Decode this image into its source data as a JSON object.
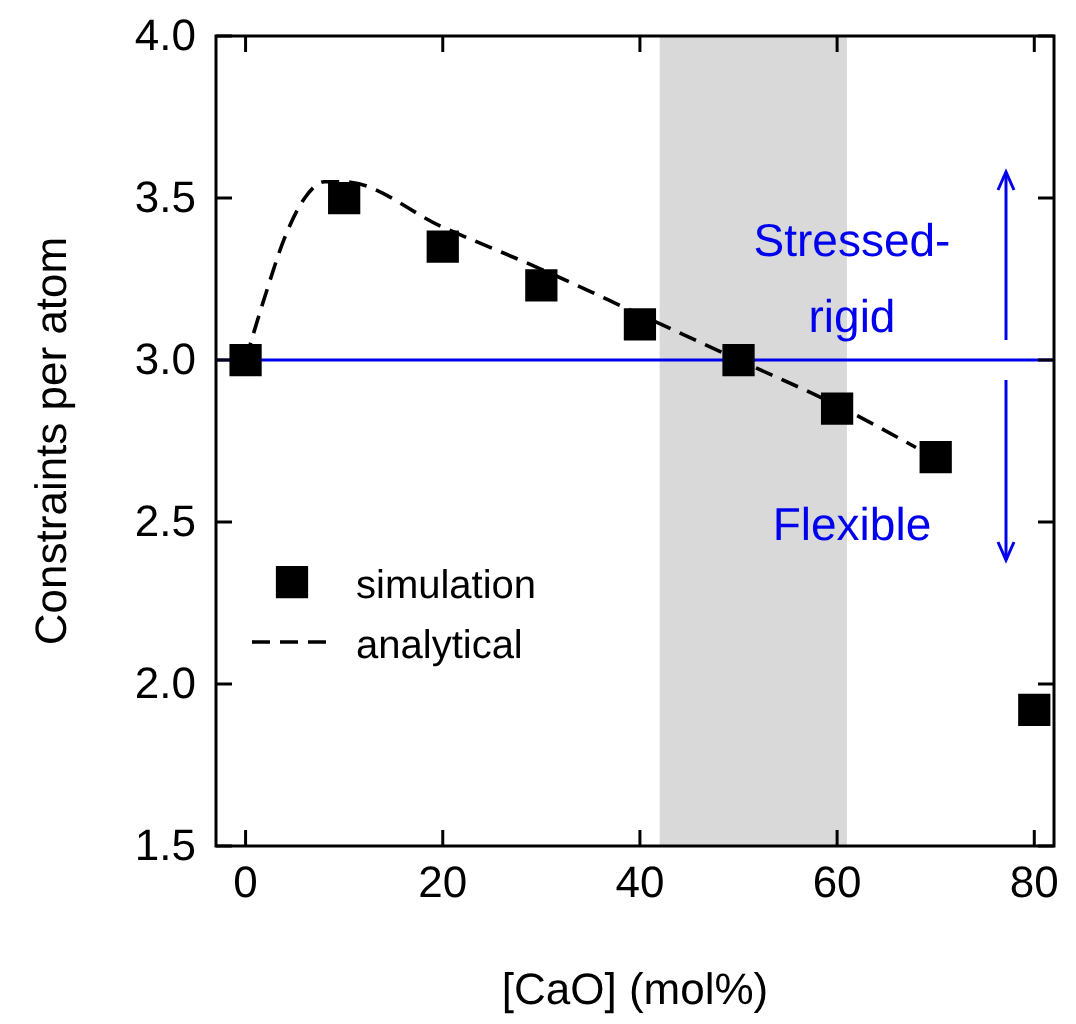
{
  "chart_data": {
    "type": "scatter",
    "xlabel": "[CaO] (mol%)",
    "ylabel": "Constraints per atom",
    "xlim": [
      -3,
      82
    ],
    "xticks": [
      0,
      20,
      40,
      60,
      80
    ],
    "ylim": [
      1.5,
      4.0
    ],
    "yticks": [
      1.5,
      {
        "value": 2,
        "label": "2.0"
      },
      2.5,
      {
        "value": 3,
        "label": "3.0"
      },
      3.5,
      {
        "value": 4,
        "label": "4.0"
      }
    ],
    "grid": false,
    "legend": "bottom left",
    "series": [
      {
        "name": "simulation",
        "marker": "square",
        "color": "#000000",
        "x": [
          0,
          10,
          20,
          30,
          40,
          50,
          60,
          70,
          80
        ],
        "values": [
          3.0,
          3.5,
          3.35,
          3.23,
          3.11,
          3.0,
          2.85,
          2.7,
          1.92
        ]
      },
      {
        "name": "analytical",
        "type": "line",
        "line_style": "dashed",
        "marker": "none",
        "color": "#000000",
        "x": [
          0,
          2,
          4,
          6,
          8,
          10,
          20,
          30,
          40,
          50,
          60,
          68
        ],
        "values": [
          3.0,
          3.2,
          3.38,
          3.5,
          3.55,
          3.55,
          3.41,
          3.28,
          3.14,
          3.0,
          2.86,
          2.73
        ]
      }
    ],
    "ref_lines": [
      {
        "axis": "y",
        "value": 3.0,
        "color": "#0000ee",
        "line_style": "solid"
      }
    ],
    "bands": [
      {
        "axis": "x",
        "from": 42,
        "to": 61,
        "color": "#d9d9d9"
      }
    ],
    "annotations": [
      "Stressed-\nrigid",
      "Flexible"
    ]
  }
}
